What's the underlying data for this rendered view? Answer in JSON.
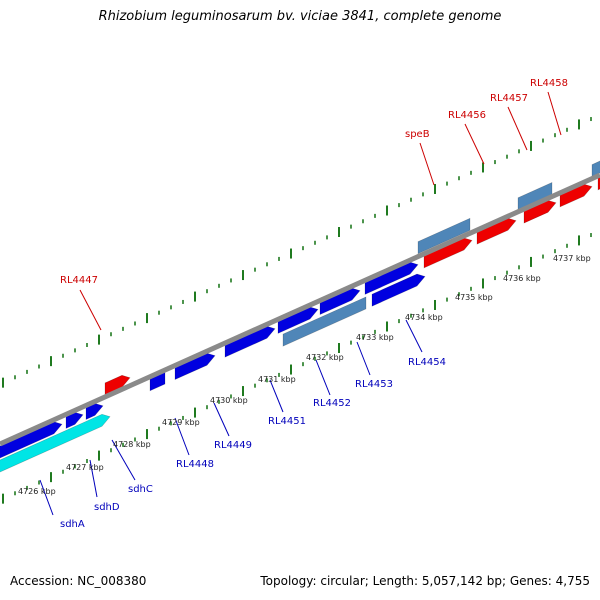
{
  "title": "Rhizobium leguminosarum bv. viciae 3841, complete genome",
  "footer": {
    "accession": "Accession: NC_008380",
    "summary": "Topology: circular; Length: 5,057,142 bp; Genes: 4,755"
  },
  "colors": {
    "forward_cds": "#0000e0",
    "reverse_cds": "#ee0000",
    "forward_rna": "#00e5e5",
    "reverse_rna": "#4f86b8",
    "backbone": "#8a8a8a",
    "tick": "#1f7a1f",
    "label_top": "#cc0000",
    "label_bottom": "#0000bb"
  },
  "genes_top": [
    {
      "name": "RL4447"
    },
    {
      "name": "speB"
    },
    {
      "name": "RL4456"
    },
    {
      "name": "RL4457"
    },
    {
      "name": "RL4458"
    }
  ],
  "genes_bottom": [
    {
      "name": "sdhA"
    },
    {
      "name": "sdhD"
    },
    {
      "name": "sdhC"
    },
    {
      "name": "RL4448"
    },
    {
      "name": "RL4449"
    },
    {
      "name": "RL4451"
    },
    {
      "name": "RL4452"
    },
    {
      "name": "RL4453"
    },
    {
      "name": "RL4454"
    }
  ],
  "scale_labels": [
    {
      "text": "4726 kbp"
    },
    {
      "text": "4727 kbp"
    },
    {
      "text": "4728 kbp"
    },
    {
      "text": "4729 kbp"
    },
    {
      "text": "4730 kbp"
    },
    {
      "text": "4731 kbp"
    },
    {
      "text": "4732 kbp"
    },
    {
      "text": "4733 kbp"
    },
    {
      "text": "4734 kbp"
    },
    {
      "text": "4735 kbp"
    },
    {
      "text": "4736 kbp"
    },
    {
      "text": "4737 kbp"
    }
  ]
}
